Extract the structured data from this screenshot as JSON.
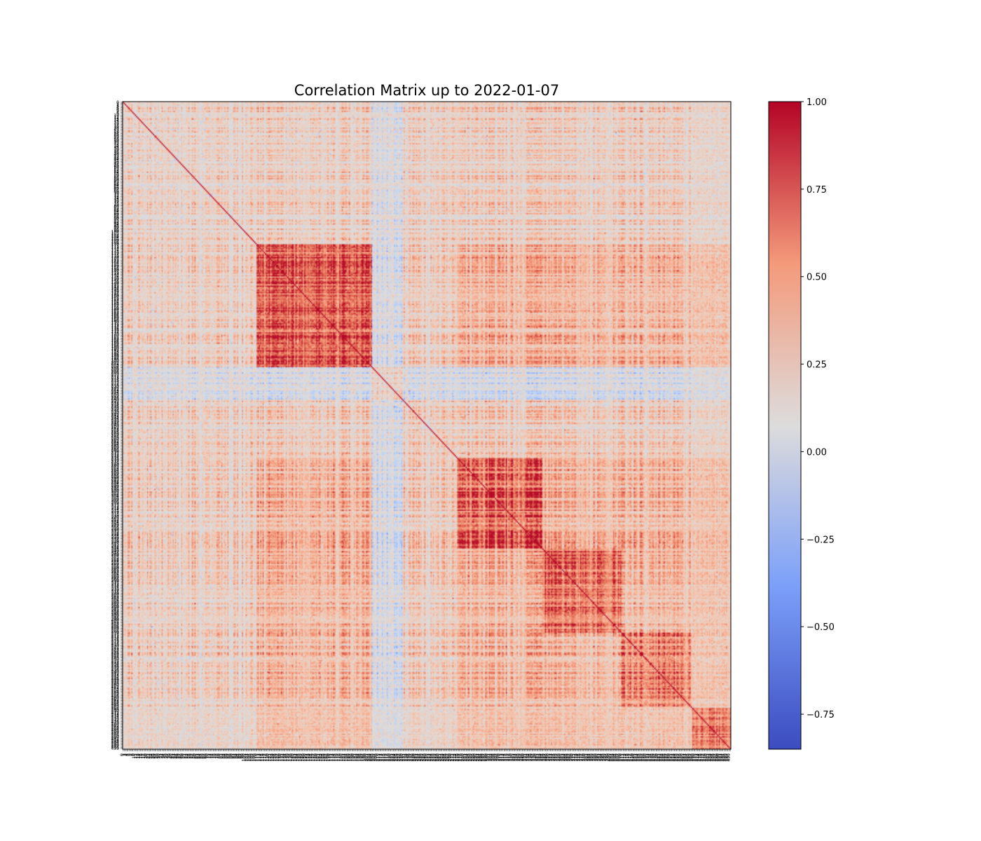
{
  "chart_data": {
    "type": "heatmap",
    "title": "Correlation Matrix up to 2022-01-07",
    "xlabel": "",
    "ylabel": "",
    "n_variables": 500,
    "colormap": "coolwarm",
    "diagonal_value": 1.0,
    "value_range": [
      -0.85,
      1.0
    ],
    "colorbar": {
      "ticks": [
        1.0,
        0.75,
        0.5,
        0.25,
        0.0,
        -0.25,
        -0.5,
        -0.75
      ],
      "tick_labels": [
        "1.00",
        "0.75",
        "0.50",
        "0.25",
        "0.00",
        "−0.25",
        "−0.50",
        "−0.75"
      ]
    },
    "row_tick_labels": "0,1,2,3,4,5,6,7,8,9,10,11,12,13,14,15,16,17,18,19,20,21,22,23,24,25,26,27,28,29,30,31,32,33,34,35,36,37,38,39,40,41,42,43,44,45,46,47,48,49,50,51,52,53,54,55,56,57,58,59,60,61,62,63,64,65,66,67,68,69,70,71,72,73,74,75,76,77,78,79,80,81,82,83,84,85,86,87,88,89,90,91,92,93,94,95,96,97,98,99,100,101,102,103,104,105,106,107,108,109,110,111,112,113,114,115,116,117,118,119,120,121,122,123,124,125,126,127,128,129,130,131,132,133,134,135,136,137,138,139,140,141,142,143,144,145,146,147,148,149,150,151,152,153,154,155,156,157,158,159,160,161,162,163,164,165,166,167,168,169,170,171,172,173,174,175,176,177,178,179,180,181,182,183,184,185,186,187,188,189,190,191,192,193,194,195,196,197,198,199,200,201,202,203,204,205,206,207,208,209,210,211,212,213,214,215,216,217,218,219,220,221,222,223,224,225,226,227,228,229,230,231,232,233,234,235,236,237,238,239,240,241,242,243,244,245,246,247,248,249,250,251,252,253,254,255,256,257,258,259,260,261,262,263,264,265,266,267,268,269,270,271,272,273,274,275,276,277,278,279,280,281,282,283,284,285,286,287,288,289,290,291,292,293,294,295,296,297,298,299,300,301,302,303,304,305,306,307,308,309,310,311,312,313,314,315,316,317,318,319,320,321,322,323,324,325,326,327,328,329,330,331,332,333,334,335,336,337,338,339,340,341,342,343,344,345,346,347,348,349,350,351,352,353,354,355,356,357,358,359,360,361,362,363,364,365,366,367,368,369,370,371,372,373,374,375,376,377,378,379,380,381,382,383,384,385,386,387,388,389,390,391,392,393,394,395,396,397,398,399,400,401,402,403,404,405,406,407,408,409,410,411,412,413,414,415,416,417,418,419,420,421,422,423,424,425,426,427,428,429,430,431,432,433,434,435,436,437,438,439,440,441,442,443,444,445,446,447,448,449,450,451,452,453,454,455,456,457,458,459,460,461,462,463,464,465,466,467,468,469,470,471,472,473,474,475,476,477,478,479,480,481,482,483,484,485,486,487,488,489,490,491,492,493,494,495,496,497,498,499",
    "col_tick_labels": "0,1,2,3,4,5,6,7,8,9,10,11,12,13,14,15,16,17,18,19,20,21,22,23,24,25,26,27,28,29,30,31,32,33,34,35,36,37,38,39,40,41,42,43,44,45,46,47,48,49,50,51,52,53,54,55,56,57,58,59,60,61,62,63,64,65,66,67,68,69,70,71,72,73,74,75,76,77,78,79,80,81,82,83,84,85,86,87,88,89,90,91,92,93,94,95,96,97,98,99,100,101,102,103,104,105,106,107,108,109,110,111,112,113,114,115,116,117,118,119,120,121,122,123,124,125,126,127,128,129,130,131,132,133,134,135,136,137,138,139,140,141,142,143,144,145,146,147,148,149,150,151,152,153,154,155,156,157,158,159,160,161,162,163,164,165,166,167,168,169,170,171,172,173,174,175,176,177,178,179,180,181,182,183,184,185,186,187,188,189,190,191,192,193,194,195,196,197,198,199,200,201,202,203,204,205,206,207,208,209,210,211,212,213,214,215,216,217,218,219,220,221,222,223,224,225,226,227,228,229,230,231,232,233,234,235,236,237,238,239,240,241,242,243,244,245,246,247,248,249,250,251,252,253,254,255,256,257,258,259,260,261,262,263,264,265,266,267,268,269,270,271,272,273,274,275,276,277,278,279,280,281,282,283,284,285,286,287,288,289,290,291,292,293,294,295,296,297,298,299,300,301,302,303,304,305,306,307,308,309,310,311,312,313,314,315,316,317,318,319,320,321,322,323,324,325,326,327,328,329,330,331,332,333,334,335,336,337,338,339,340,341,342,343,344,345,346,347,348,349,350,351,352,353,354,355,356,357,358,359,360,361,362,363,364,365,366,367,368,369,370,371,372,373,374,375,376,377,378,379,380,381,382,383,384,385,386,387,388,389,390,391,392,393,394,395,396,397,398,399,400,401,402,403,404,405,406,407,408,409,410,411,412,413,414,415,416,417,418,419,420,421,422,423,424,425,426,427,428,429,430,431,432,433,434,435,436,437,438,439,440,441,442,443,444,445,446,447,448,449,450,451,452,453,454,455,456,457,458,459,460,461,462,463,464,465,466,467,468,469,470,471,472,473,474,475,476,477,478,479,480,481,482,483,484,485,486,487,488,489,490,491,492,493,494,495,496,497,498,499",
    "high_correlation_blocks": [
      {
        "start": 110,
        "end": 205,
        "mean": 0.7
      },
      {
        "start": 275,
        "end": 345,
        "mean": 0.65
      },
      {
        "start": 345,
        "end": 410,
        "mean": 0.6
      },
      {
        "start": 410,
        "end": 468,
        "mean": 0.45
      },
      {
        "start": 468,
        "end": 500,
        "mean": 0.7
      }
    ]
  }
}
